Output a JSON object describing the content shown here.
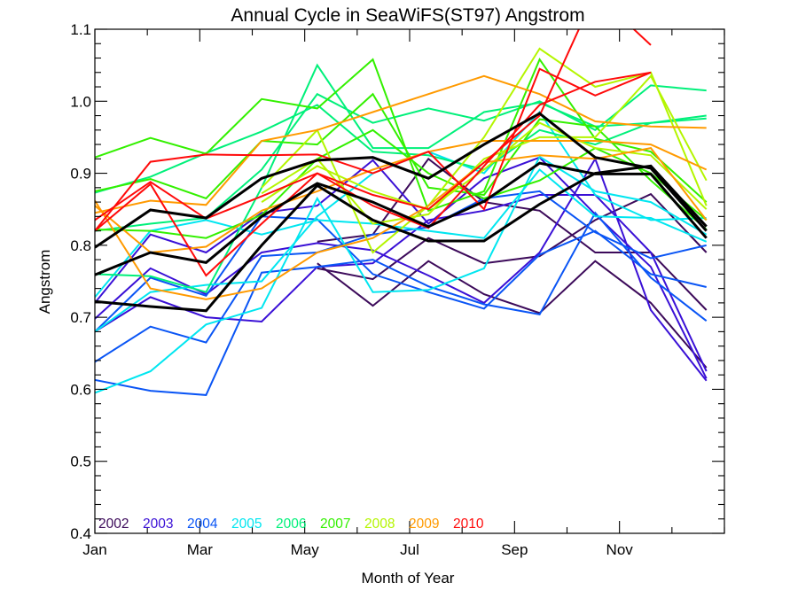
{
  "chart_data": {
    "type": "line",
    "title": "Annual Cycle in SeaWiFS(ST97) Angstrom",
    "xlabel": "Month of Year",
    "ylabel": "Angstrom",
    "ylim": [
      0.4,
      1.1
    ],
    "xlim_months": [
      1,
      13
    ],
    "yticks": [
      "0.4",
      "0.5",
      "0.6",
      "0.7",
      "0.8",
      "0.9",
      "1.0",
      "1.1"
    ],
    "ytick_values": [
      0.4,
      0.5,
      0.6,
      0.7,
      0.8,
      0.9,
      1.0,
      1.1
    ],
    "xticks": [
      "Jan",
      "Mar",
      "May",
      "Jul",
      "Sep",
      "Nov"
    ],
    "xtick_months": [
      1,
      3,
      5,
      7,
      9,
      11
    ],
    "x": [
      1,
      2,
      3,
      4,
      5,
      6,
      7,
      8,
      9,
      10,
      11,
      12
    ],
    "grid": false,
    "legend": {
      "placement": "bottom-left",
      "entries": [
        {
          "label": "2002",
          "color": "#3c0a5a"
        },
        {
          "label": "2003",
          "color": "#3a10d6"
        },
        {
          "label": "2004",
          "color": "#0a55f5"
        },
        {
          "label": "2005",
          "color": "#00e6f0"
        },
        {
          "label": "2006",
          "color": "#00f07a"
        },
        {
          "label": "2007",
          "color": "#33f000"
        },
        {
          "label": "2008",
          "color": "#b4f500"
        },
        {
          "label": "2009",
          "color": "#ff9a00"
        },
        {
          "label": "2010",
          "color": "#ff0a0a"
        }
      ]
    },
    "series": [
      {
        "name": "2002",
        "color": "#3c0a5a",
        "values": [
          null,
          null,
          null,
          null,
          0.775,
          0.716,
          0.778,
          0.732,
          0.706,
          0.778,
          0.72,
          0.63
        ]
      },
      {
        "name": "2002",
        "color": "#3c0a5a",
        "values": [
          null,
          null,
          null,
          null,
          0.805,
          0.815,
          0.92,
          0.86,
          0.848,
          0.79,
          0.79,
          0.71
        ]
      },
      {
        "name": "2002",
        "color": "#3c0a5a",
        "values": [
          null,
          null,
          null,
          null,
          0.768,
          0.753,
          0.81,
          0.775,
          0.785,
          0.835,
          0.871,
          0.79
        ]
      },
      {
        "name": "2003",
        "color": "#3a10d6",
        "values": [
          0.698,
          0.768,
          0.732,
          0.79,
          0.803,
          0.793,
          0.758,
          0.72,
          0.79,
          0.92,
          0.71,
          0.612
        ]
      },
      {
        "name": "2003",
        "color": "#3a10d6",
        "values": [
          0.72,
          0.815,
          0.79,
          0.845,
          0.855,
          0.918,
          0.83,
          0.893,
          0.922,
          0.843,
          0.77,
          0.615
        ]
      },
      {
        "name": "2003",
        "color": "#3a10d6",
        "values": [
          0.68,
          0.728,
          0.7,
          0.694,
          0.77,
          0.775,
          0.835,
          0.848,
          0.87,
          0.87,
          0.79,
          0.625
        ]
      },
      {
        "name": "2004",
        "color": "#0a55f5",
        "values": [
          0.613,
          0.598,
          0.592,
          0.762,
          0.77,
          0.78,
          0.743,
          0.718,
          0.704,
          0.845,
          0.755,
          0.695
        ]
      },
      {
        "name": "2004",
        "color": "#0a55f5",
        "values": [
          0.638,
          0.687,
          0.665,
          0.785,
          0.79,
          0.815,
          0.825,
          0.865,
          0.875,
          0.818,
          0.782,
          0.8
        ]
      },
      {
        "name": "2004",
        "color": "#0a55f5",
        "values": [
          0.68,
          0.755,
          0.73,
          0.84,
          0.836,
          0.76,
          0.735,
          0.712,
          0.787,
          0.82,
          0.76,
          0.742
        ]
      },
      {
        "name": "2005",
        "color": "#00e6f0",
        "values": [
          0.595,
          0.625,
          0.69,
          0.713,
          0.865,
          0.735,
          0.738,
          0.768,
          0.923,
          0.875,
          0.86,
          0.815
        ]
      },
      {
        "name": "2005",
        "color": "#00e6f0",
        "values": [
          0.728,
          0.82,
          0.835,
          0.815,
          0.835,
          0.83,
          0.82,
          0.81,
          0.905,
          0.84,
          0.838,
          0.805
        ]
      },
      {
        "name": "2005",
        "color": "#00e6f0",
        "values": [
          0.68,
          0.735,
          0.745,
          0.75,
          0.84,
          0.9,
          0.93,
          0.9,
          0.985,
          0.87,
          0.835,
          0.838
        ]
      },
      {
        "name": "2006",
        "color": "#00f07a",
        "values": [
          0.76,
          0.757,
          0.735,
          0.88,
          1.05,
          0.935,
          0.935,
          0.985,
          0.998,
          0.965,
          0.97,
          0.976
        ]
      },
      {
        "name": "2006",
        "color": "#00f07a",
        "values": [
          0.82,
          0.83,
          0.838,
          0.905,
          1.01,
          0.97,
          0.99,
          0.973,
          1.0,
          0.96,
          1.022,
          1.015
        ]
      },
      {
        "name": "2006",
        "color": "#00f07a",
        "values": [
          0.873,
          0.895,
          0.928,
          0.958,
          0.995,
          0.93,
          0.925,
          0.905,
          0.96,
          0.94,
          0.97,
          0.98
        ]
      },
      {
        "name": "2007",
        "color": "#33f000",
        "values": [
          0.922,
          0.949,
          0.927,
          1.003,
          0.99,
          1.058,
          0.848,
          0.875,
          1.058,
          0.948,
          0.93,
          0.86
        ]
      },
      {
        "name": "2007",
        "color": "#33f000",
        "values": [
          0.875,
          0.892,
          0.865,
          0.945,
          0.94,
          1.01,
          0.88,
          0.87,
          0.975,
          0.965,
          0.89,
          0.822
        ]
      },
      {
        "name": "2007",
        "color": "#33f000",
        "values": [
          0.822,
          0.82,
          0.81,
          0.842,
          0.92,
          0.96,
          0.9,
          0.865,
          0.89,
          0.935,
          0.9,
          0.835
        ]
      },
      {
        "name": "2008",
        "color": "#b4f500",
        "values": [
          null,
          null,
          null,
          0.88,
          0.96,
          0.79,
          0.855,
          0.95,
          1.073,
          1.02,
          1.04,
          0.855
        ]
      },
      {
        "name": "2008",
        "color": "#b4f500",
        "values": [
          null,
          null,
          null,
          0.86,
          0.91,
          0.875,
          0.85,
          0.905,
          0.97,
          0.935,
          0.925,
          0.85
        ]
      },
      {
        "name": "2008",
        "color": "#b4f500",
        "values": [
          null,
          null,
          null,
          0.872,
          0.92,
          0.83,
          0.843,
          0.92,
          0.95,
          0.95,
          1.035,
          0.89
        ]
      },
      {
        "name": "2009",
        "color": "#ff9a00",
        "values": [
          0.862,
          0.74,
          0.725,
          0.74,
          0.79,
          0.81,
          0.855,
          0.915,
          0.925,
          0.92,
          0.935,
          0.835
        ]
      },
      {
        "name": "2009",
        "color": "#ff9a00",
        "values": [
          0.845,
          0.862,
          0.856,
          0.945,
          0.96,
          0.985,
          1.01,
          1.035,
          1.01,
          0.972,
          0.965,
          0.963
        ]
      },
      {
        "name": "2009",
        "color": "#ff9a00",
        "values": [
          0.855,
          0.79,
          0.798,
          0.848,
          0.875,
          0.905,
          0.93,
          0.945,
          0.945,
          0.945,
          0.94,
          0.905
        ]
      },
      {
        "name": "2010",
        "color": "#ff0a0a",
        "values": [
          0.82,
          0.916,
          0.926,
          0.925,
          0.926,
          0.9,
          0.93,
          0.85,
          1.045,
          1.008,
          1.04,
          null
        ]
      },
      {
        "name": "2010",
        "color": "#ff0a0a",
        "values": [
          0.835,
          0.888,
          0.837,
          0.868,
          0.9,
          0.855,
          0.824,
          0.91,
          0.995,
          1.027,
          1.04,
          null
        ]
      },
      {
        "name": "2010",
        "color": "#ff0a0a",
        "values": [
          0.82,
          0.885,
          0.758,
          0.83,
          0.9,
          0.87,
          0.85,
          0.915,
          0.98,
          1.15,
          1.078,
          null
        ]
      },
      {
        "name": "mean-upper",
        "color": "#000000",
        "values": [
          0.797,
          0.849,
          0.838,
          0.893,
          0.918,
          0.922,
          0.893,
          0.94,
          0.983,
          0.922,
          0.907,
          0.82
        ]
      },
      {
        "name": "mean",
        "color": "#000000",
        "values": [
          0.759,
          0.79,
          0.776,
          0.84,
          0.886,
          0.86,
          0.826,
          0.861,
          0.914,
          0.899,
          0.899,
          0.81
        ]
      },
      {
        "name": "mean-lower",
        "color": "#000000",
        "values": [
          0.722,
          0.715,
          0.709,
          0.8,
          0.883,
          0.835,
          0.806,
          0.806,
          0.857,
          0.9,
          0.91,
          0.826
        ]
      }
    ]
  }
}
